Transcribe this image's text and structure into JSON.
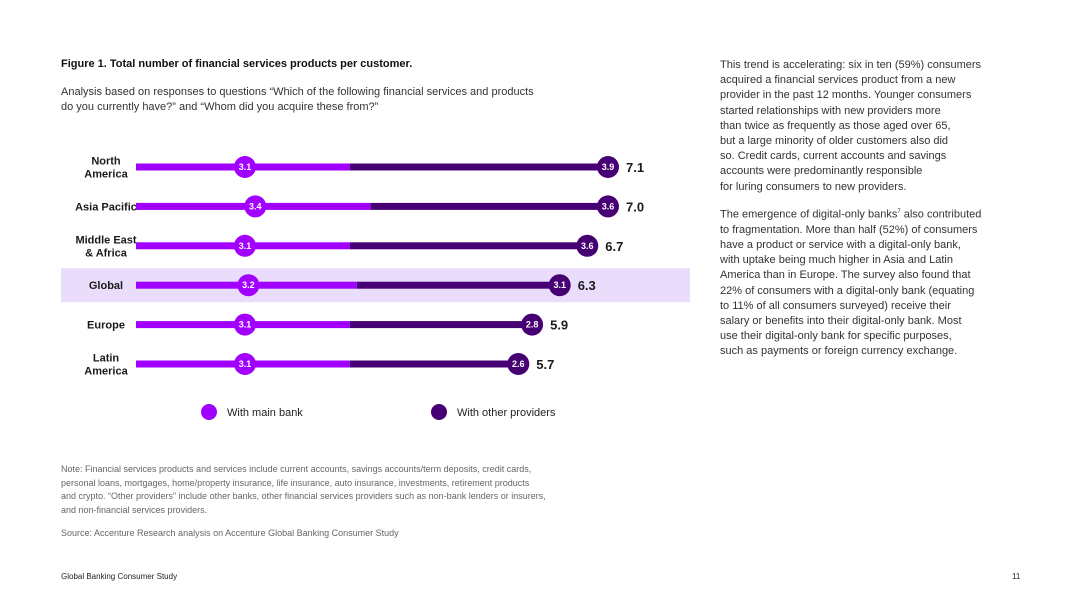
{
  "figure": {
    "title": "Figure 1. Total number of financial services products per customer.",
    "subtitle_lines": [
      "Analysis based on responses to questions “Which of the following financial services and products",
      "do you currently have?” and “Whom did you acquire these from?”"
    ]
  },
  "chart_data": {
    "type": "bar",
    "orientation": "horizontal",
    "stacked": true,
    "title": "Total number of financial services products per customer",
    "categories": [
      [
        "North",
        "America"
      ],
      [
        "Asia Pacific"
      ],
      [
        "Middle East",
        "& Africa"
      ],
      [
        "Global"
      ],
      [
        "Europe"
      ],
      [
        "Latin",
        "America"
      ]
    ],
    "highlight_category_index": 3,
    "series": [
      {
        "name": "With main bank",
        "color": "#a100ff",
        "values": [
          3.1,
          3.4,
          3.1,
          3.2,
          3.1,
          3.1
        ],
        "labels": [
          "3.1",
          "3.4",
          "3.1",
          "3.2",
          "3.1",
          "3.1"
        ]
      },
      {
        "name": "With other providers",
        "color": "#460073",
        "values": [
          3.9,
          3.6,
          3.6,
          3.1,
          2.8,
          2.6
        ],
        "labels": [
          "3.9",
          "3.6",
          "3.6",
          "3.1",
          "2.8",
          "2.6"
        ]
      }
    ],
    "totals": [
      7.1,
      7.0,
      6.7,
      6.3,
      5.9,
      5.7
    ],
    "total_labels": [
      "7.1",
      "7.0",
      "6.7",
      "6.3",
      "5.9",
      "5.7"
    ],
    "xlim": [
      0,
      7.1
    ],
    "legend_position": "bottom"
  },
  "colors": {
    "main_bank": "#a100ff",
    "other_providers": "#460073",
    "highlight_row": "#e9ddfb"
  },
  "paragraphs": [
    [
      "This trend is accelerating: six in ten (59%) consumers",
      "acquired a financial services product from a new",
      "provider in the past 12 months. Younger consumers",
      "started relationships with new providers more",
      "than twice as frequently as those aged over 65,",
      "but a large minority of older customers also did",
      "so. Credit cards, current accounts and savings",
      "accounts were predominantly responsible",
      "for luring consumers to new providers."
    ],
    [
      "The emergence of digital-only banks",
      "to fragmentation. More than half (52%) of consumers",
      "have a product or service with a digital-only bank,",
      "with uptake being much higher in Asia and Latin",
      "America than in Europe. The survey also found that",
      "22% of consumers with a digital-only bank (equating",
      "to 11% of all consumers surveyed) receive their",
      "salary or benefits into their digital-only bank. Most",
      "use their digital-only bank for specific purposes,",
      "such as payments or foreign currency exchange."
    ]
  ],
  "footnote_marker": "7",
  "para2_line1_tail": " also contributed",
  "note_lines": [
    "Note: Financial services products and services include current accounts, savings accounts/term deposits, credit cards,",
    "personal loans, mortgages, home/property insurance, life insurance, auto insurance, investments, retirement products",
    "and crypto. “Other providers” include other banks, other financial services providers such as non-bank lenders or insurers,",
    "and non-financial services providers."
  ],
  "source": "Source: Accenture Research analysis on Accenture Global Banking Consumer Study",
  "footer": "Global Banking Consumer Study",
  "page_number": "11"
}
